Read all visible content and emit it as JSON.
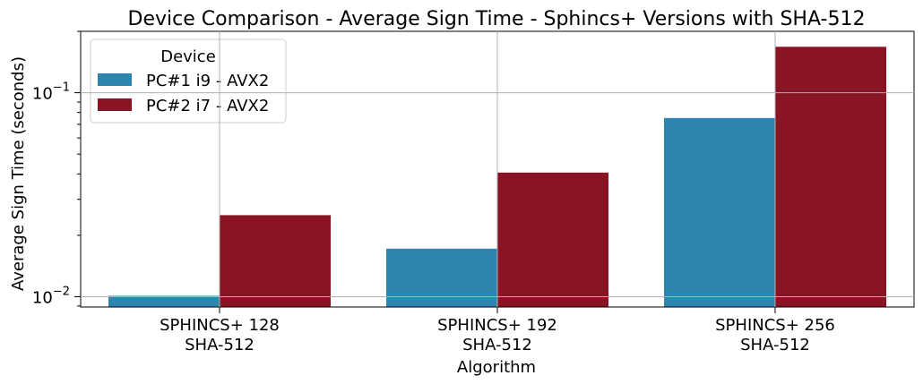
{
  "chart_data": {
    "type": "bar",
    "title": "Device Comparison - Average Sign Time - Sphincs+ Versions with SHA-512",
    "xlabel": "Algorithm",
    "ylabel": "Average Sign Time (seconds)",
    "yscale": "log",
    "ylim": [
      0.0089,
      0.2
    ],
    "yticks": [
      {
        "value": 0.01,
        "base": "10",
        "exp": "−2"
      },
      {
        "value": 0.1,
        "base": "10",
        "exp": "−1"
      }
    ],
    "grid": true,
    "legend": {
      "title": "Device",
      "placement": "upper-left"
    },
    "categories": [
      [
        "SPHINCS+ 128",
        "SHA-512"
      ],
      [
        "SPHINCS+ 192",
        "SHA-512"
      ],
      [
        "SPHINCS+ 256",
        "SHA-512"
      ]
    ],
    "series": [
      {
        "name": "PC#1 i9 - AVX2",
        "color": "#2e86b0",
        "values": [
          0.0101,
          0.0172,
          0.0752
        ]
      },
      {
        "name": "PC#2 i7 - AVX2",
        "color": "#881424",
        "values": [
          0.0251,
          0.0406,
          0.168
        ]
      }
    ]
  }
}
